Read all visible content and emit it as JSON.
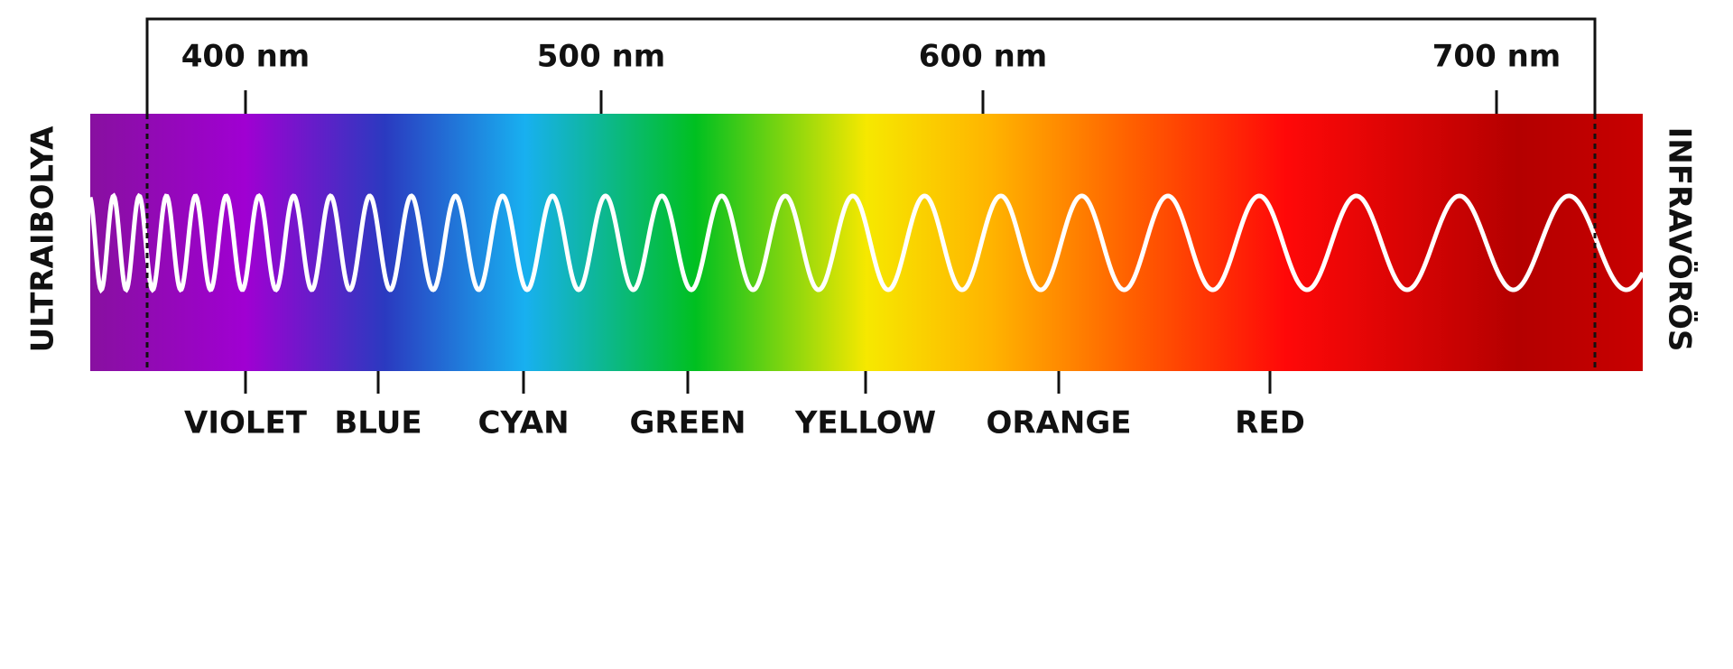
{
  "scale_labels": [
    "400 nm",
    "500 nm",
    "600 nm",
    "700 nm"
  ],
  "color_labels": [
    "VIOLET",
    "BLUE",
    "CYAN",
    "GREEN",
    "YELLOW",
    "ORANGE",
    "RED"
  ],
  "left_label": "ULTRAIBOLYA",
  "right_label": "INFRAVÖRÖS"
}
